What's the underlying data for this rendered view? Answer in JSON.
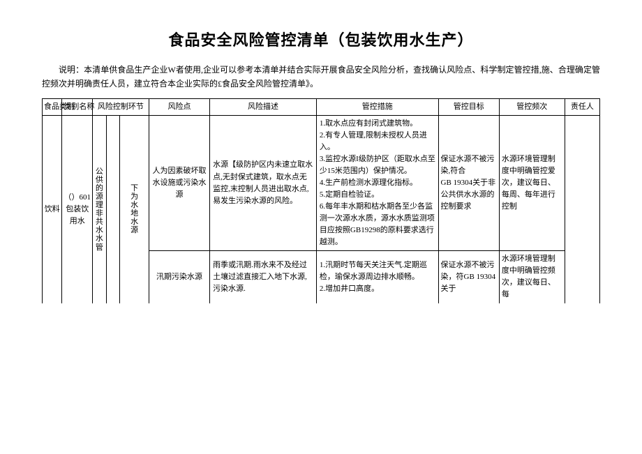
{
  "title": "食品安全风险管控清单（包装饮用水生产）",
  "description": "说明：本清单供食品生产企业W者使用,企业可以参考本清单并结合实际开展食品安全风险分析，查找确认风险点、科学制定管控措,施、合理确定管控频次并明确责任人员，建立符合本企业实际的£食品安全风险管控清单》。",
  "headers": {
    "food_category": "食品类别",
    "category_name": "类别名称",
    "control_stage": "风险控制环节",
    "risk_point": "风险点",
    "risk_desc": "风险描述",
    "measure": "管控措施",
    "target": "管控目标",
    "freq": "管控频次",
    "person": "责任人"
  },
  "body": {
    "food_category": "饮料",
    "category_name": "（）601包装饮用水",
    "stage_a": "公供的源理非共水水管",
    "stage_b": "下为水地水源",
    "row1": {
      "risk_point": "人为因素破坏取水设施或污染水源",
      "risk_desc": "水源【级防护区内未速立取水点,无封保式建筑，取水点无监控,末控制人员进出取水点,易发生污染水源的风险。",
      "measure": "1.取水点应有封闭式建筑物。\n2.有专人管理,限制未授权人员进入。\n3.监控水源I级防护区（距取水点至少15米范围内）保护情况。\n4.生产前检测水源理化指标。\n5.定期自检验证。\n6.每年丰水期和枯水期各至少各监测一次源水水质，源水水质监测项目应按照GB19298的原料要求选行越测。",
      "target": "保证水源不被污染,符合　　　　GB 19304关于非公共供水水源的控制要求",
      "freq": "水源环境管理制度中明确管控爱次，建议每日、每周、每年进行控制",
      "person": ""
    },
    "row2": {
      "risk_point": "汛期污染水源",
      "risk_desc": "雨季或汛期.雨水来不及经过土壤过滤直接汇入地下水源, 污染水源.",
      "measure": "1.汛期时节每天关注天气.定期巡检，瑜保水源周边排水顺畅。\n2.增加井口高度。",
      "target": "保证水源不被污染，符GB 19304关于",
      "freq": "水源环境管理制度中明确管控频次，建议每日、每",
      "person": ""
    }
  }
}
